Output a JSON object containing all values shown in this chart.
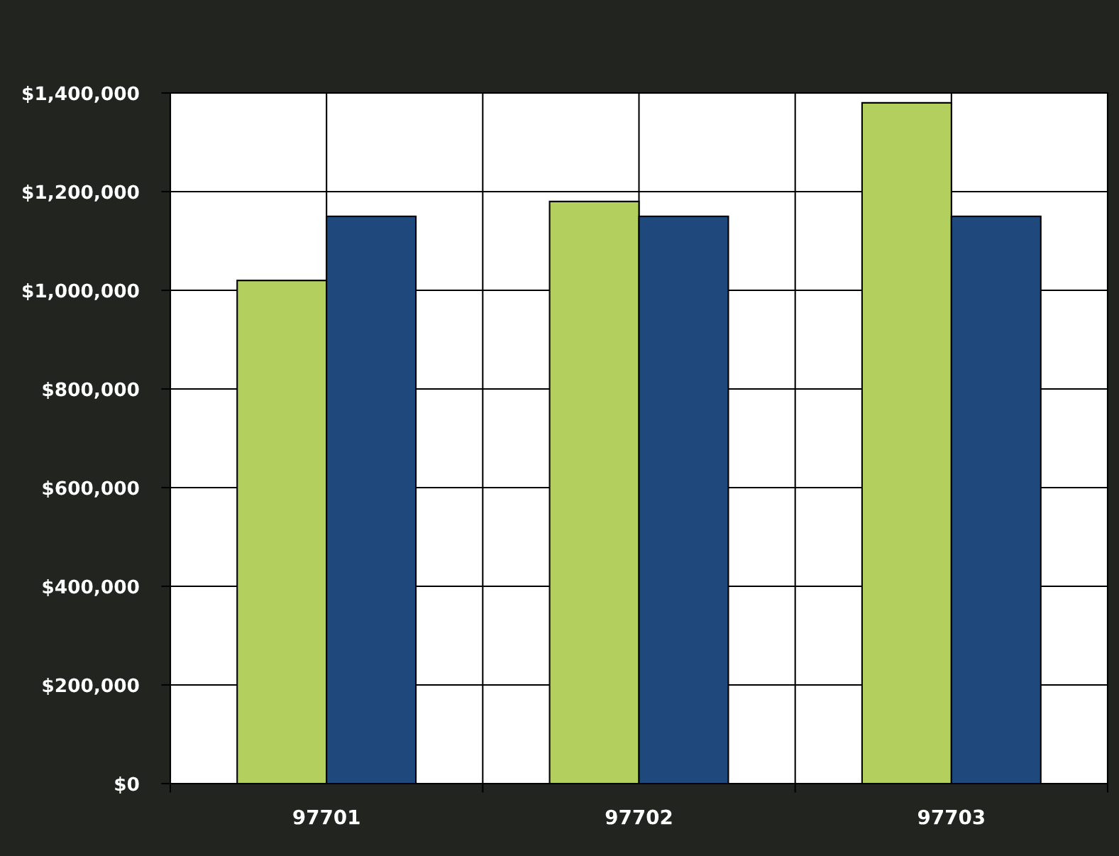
{
  "chart_data": {
    "type": "bar",
    "categories": [
      "97701",
      "97702",
      "97703"
    ],
    "series": [
      {
        "color": "#b3cf5d",
        "values": [
          1020000,
          1180000,
          1380000
        ]
      },
      {
        "color": "#1f497d",
        "values": [
          1150000,
          1150000,
          1150000
        ]
      }
    ],
    "ylim": [
      0,
      1400000
    ],
    "yticks": [
      {
        "value": 0,
        "label": "$0"
      },
      {
        "value": 200000,
        "label": "$200,000"
      },
      {
        "value": 400000,
        "label": "$400,000"
      },
      {
        "value": 600000,
        "label": "$600,000"
      },
      {
        "value": 800000,
        "label": "$800,000"
      },
      {
        "value": 1000000,
        "label": "$1,000,000"
      },
      {
        "value": 1200000,
        "label": "$1,200,000"
      },
      {
        "value": 1400000,
        "label": "$1,400,000"
      }
    ],
    "grid": true
  }
}
